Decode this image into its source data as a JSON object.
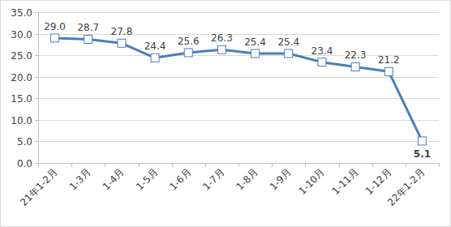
{
  "chart_data": {
    "type": "line",
    "categories": [
      "21年1-2月",
      "1-3月",
      "1-4月",
      "1-5月",
      "1-6月",
      "1-7月",
      "1-8月",
      "1-9月",
      "1-10月",
      "1-11月",
      "1-12月",
      "22年1-2月"
    ],
    "values": [
      29.0,
      28.7,
      27.8,
      24.4,
      25.6,
      26.3,
      25.4,
      25.4,
      23.4,
      22.3,
      21.2,
      5.1
    ],
    "value_labels": [
      "29.0",
      "28.7",
      "27.8",
      "24.4",
      "25.6",
      "26.3",
      "25.4",
      "25.4",
      "23.4",
      "22.3",
      "21.2",
      "5.1"
    ],
    "color": "#4a7ebb",
    "marker": "square",
    "ylim": [
      0,
      35
    ],
    "yticks": [
      {
        "value": 0,
        "label": "0.0"
      },
      {
        "value": 5,
        "label": "5.0"
      },
      {
        "value": 10,
        "label": "10.0"
      },
      {
        "value": 15,
        "label": "15.0"
      },
      {
        "value": 20,
        "label": "20.0"
      },
      {
        "value": 25,
        "label": "25.0"
      },
      {
        "value": 30,
        "label": "30.0"
      },
      {
        "value": 35,
        "label": "35.0"
      }
    ],
    "grid": true,
    "data_labels": true
  }
}
